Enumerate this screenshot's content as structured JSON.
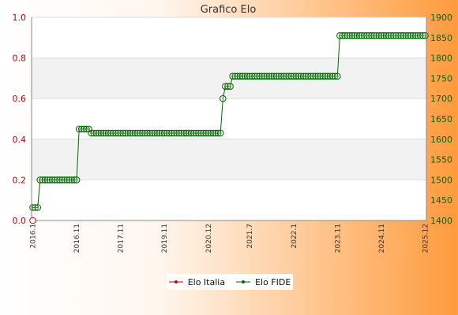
{
  "chart_data": {
    "type": "line",
    "title": "Grafico Elo",
    "left_axis": {
      "ylim": [
        0.0,
        1.0
      ],
      "ticks": [
        "0.0",
        "0.2",
        "0.4",
        "0.6",
        "0.8",
        "1.0"
      ],
      "color": "#c00000"
    },
    "right_axis": {
      "ylim": [
        1400,
        1900
      ],
      "ticks": [
        "1400",
        "1450",
        "1500",
        "1550",
        "1600",
        "1650",
        "1700",
        "1750",
        "1800",
        "1850",
        "1900"
      ],
      "color": "#006600"
    },
    "x_tick_labels": [
      "2016.1",
      "2016.11",
      "2017.11",
      "2019.11",
      "2020.12",
      "2021.7",
      "2022.1",
      "2023.11",
      "2024.11",
      "2025.12"
    ],
    "grid": true,
    "legend_position": "bottom",
    "series": [
      {
        "name": "Elo Italia",
        "axis": "left",
        "color": "#cc0000",
        "values": [
          0.0
        ]
      },
      {
        "name": "Elo FIDE",
        "axis": "right",
        "color": "#006600",
        "values": [
          1432,
          1432,
          1432,
          1500,
          1500,
          1500,
          1500,
          1500,
          1500,
          1500,
          1500,
          1500,
          1500,
          1500,
          1500,
          1500,
          1500,
          1500,
          1500,
          1625,
          1625,
          1625,
          1625,
          1625,
          1615,
          1615,
          1615,
          1615,
          1615,
          1615,
          1615,
          1615,
          1615,
          1615,
          1615,
          1615,
          1615,
          1615,
          1615,
          1615,
          1615,
          1615,
          1615,
          1615,
          1615,
          1615,
          1615,
          1615,
          1615,
          1615,
          1615,
          1615,
          1615,
          1615,
          1615,
          1615,
          1615,
          1615,
          1615,
          1615,
          1615,
          1615,
          1615,
          1615,
          1615,
          1615,
          1615,
          1615,
          1615,
          1615,
          1615,
          1615,
          1615,
          1615,
          1615,
          1615,
          1615,
          1615,
          1700,
          1730,
          1730,
          1730,
          1755,
          1755,
          1755,
          1755,
          1755,
          1755,
          1755,
          1755,
          1755,
          1755,
          1755,
          1755,
          1755,
          1755,
          1755,
          1755,
          1755,
          1755,
          1755,
          1755,
          1755,
          1755,
          1755,
          1755,
          1755,
          1755,
          1755,
          1755,
          1755,
          1755,
          1755,
          1755,
          1755,
          1755,
          1755,
          1755,
          1755,
          1755,
          1755,
          1755,
          1755,
          1755,
          1755,
          1755,
          1855,
          1855,
          1855,
          1855,
          1855,
          1855,
          1855,
          1855,
          1855,
          1855,
          1855,
          1855,
          1855,
          1855,
          1855,
          1855,
          1855,
          1855,
          1855,
          1855,
          1855,
          1855,
          1855,
          1855,
          1855,
          1855,
          1855,
          1855,
          1855,
          1855,
          1855,
          1855,
          1855,
          1855,
          1855,
          1855
        ]
      }
    ]
  },
  "legend": {
    "italia_label": "Elo Italia",
    "fide_label": "Elo FIDE"
  }
}
